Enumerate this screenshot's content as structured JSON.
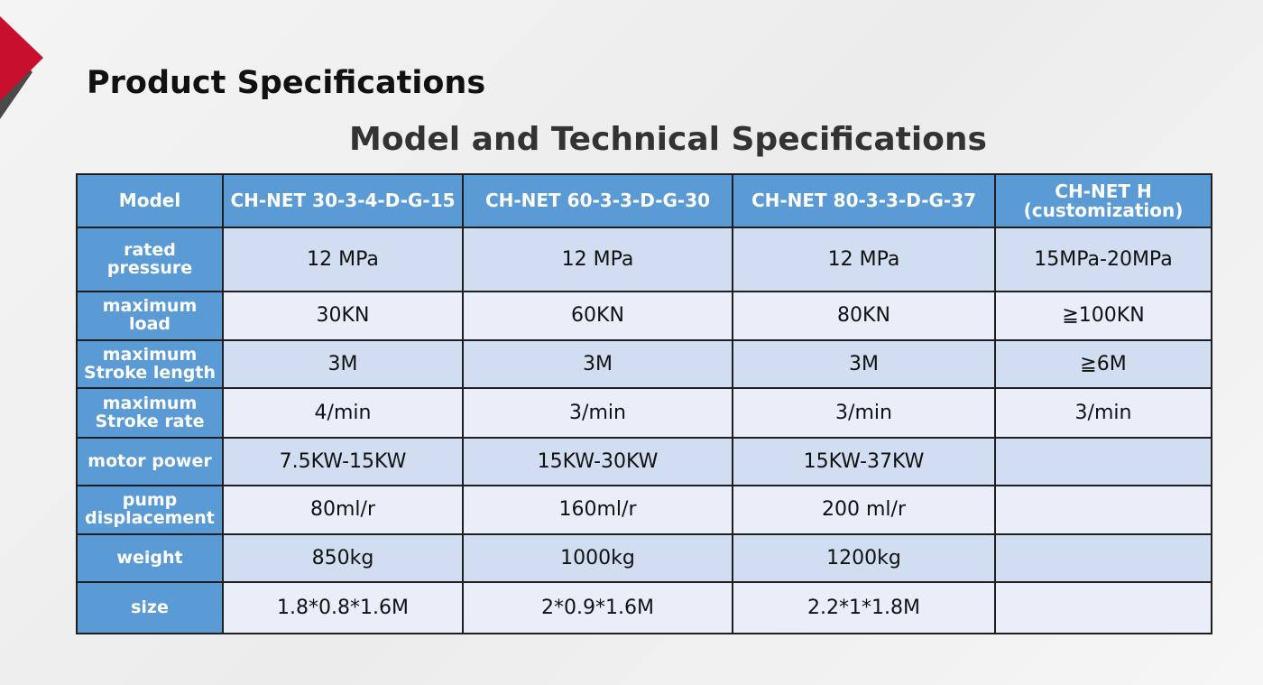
{
  "header": {
    "title": "Product Specifications"
  },
  "table": {
    "title": "Model and Technical Specifications",
    "columns": [
      "Model",
      "CH-NET 30-3-4-D-G-15",
      "CH-NET 60-3-3-D-G-30",
      "CH-NET 80-3-3-D-G-37",
      "CH-NET H\n(customization)"
    ],
    "rows": [
      [
        "rated pressure",
        "12 MPa",
        "12 MPa",
        "12 MPa",
        "15MPa-20MPa"
      ],
      [
        "maximum\nload",
        "30KN",
        "60KN",
        "80KN",
        "≧100KN"
      ],
      [
        "maximum\nStroke length",
        "3M",
        "3M",
        "3M",
        "≧6M"
      ],
      [
        "maximum\nStroke rate",
        "4/min",
        "3/min",
        "3/min",
        "3/min"
      ],
      [
        "motor power",
        "7.5KW-15KW",
        "15KW-30KW",
        "15KW-37KW"
      ],
      [
        "pump\ndisplacement",
        "80ml/r",
        "160ml/r",
        "200 ml/r"
      ],
      [
        "weight",
        "850kg",
        "1000kg",
        "1200kg"
      ],
      [
        "size",
        "1.8*0.8*1.6M",
        "2*0.9*1.6M",
        "2.2*1*1.8M"
      ]
    ]
  }
}
